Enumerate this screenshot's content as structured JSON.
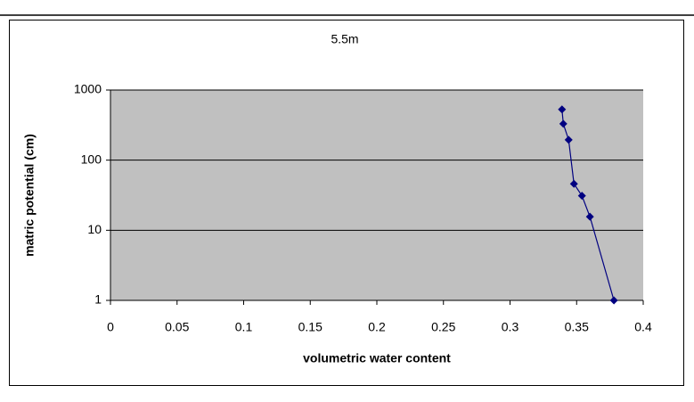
{
  "chart_data": {
    "type": "line",
    "title": "5.5m",
    "x_label": "volumetric water content",
    "y_label": "matric potential (cm)",
    "x": [
      0.339,
      0.34,
      0.344,
      0.348,
      0.354,
      0.36,
      0.378
    ],
    "series": [
      {
        "color": "#000080",
        "values": [
          530,
          330,
          195,
          46,
          31,
          15.6,
          1
        ]
      }
    ],
    "xlim": [
      0,
      0.4
    ],
    "xticks": [
      0,
      0.05,
      0.1,
      0.15,
      0.2,
      0.25,
      0.3,
      0.35,
      0.4
    ],
    "ylim": [
      1,
      1000
    ],
    "yticks": [
      1,
      10,
      100,
      1000
    ],
    "log_y": true,
    "grid": true,
    "plot_background": "#c0c0c0"
  }
}
